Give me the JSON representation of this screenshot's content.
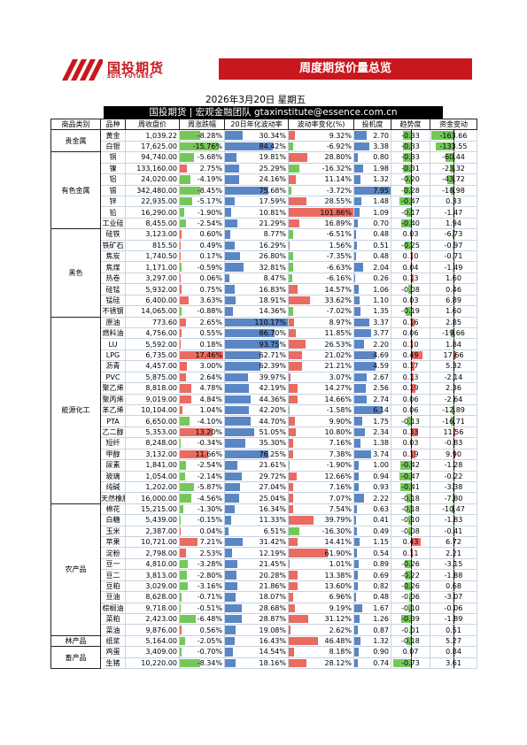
{
  "header": {
    "brand": "国投期货",
    "brand_en": "SDIC FUTURES",
    "banner": "周度期货价量总览",
    "date": "2026年3月20日 星期五",
    "team": "国投期货 | 宏观金融团队 gtaxinstitute@essence.com.cn"
  },
  "columns": [
    "商品类别",
    "品种",
    "周收盘价",
    "周涨跌幅",
    "20日年化波动率",
    "波动率变化(%)",
    "投机度",
    "趋势度",
    "资金变动"
  ],
  "colors": {
    "accent_red": "#c8171f",
    "bar_blue": "#5b86c5",
    "bar_red": "#e96b61",
    "bar_green": "#76c75a"
  },
  "groups": [
    {
      "category": "贵金属",
      "rows": [
        [
          "黄金",
          "1,039.22",
          "-8.28%",
          "30.34%",
          "9.32%",
          "2.70",
          "-0.33",
          "-163.66"
        ],
        [
          "白银",
          "17,625.00",
          "-15.76%",
          "84.42%",
          "-6.92%",
          "3.38",
          "-0.33",
          "-133.55"
        ]
      ]
    },
    {
      "category": "有色金属",
      "rows": [
        [
          "铜",
          "94,740.00",
          "-5.68%",
          "19.81%",
          "28.80%",
          "0.80",
          "-0.33",
          "-60.44"
        ],
        [
          "镍",
          "133,160.00",
          "2.75%",
          "25.29%",
          "-16.32%",
          "1.98",
          "-0.31",
          "-23.32"
        ],
        [
          "铝",
          "24,020.00",
          "-4.19%",
          "24.16%",
          "11.14%",
          "1.32",
          "-0.20",
          "-43.72"
        ],
        [
          "锡",
          "342,480.00",
          "-8.45%",
          "75.68%",
          "-3.72%",
          "7.95",
          "-0.28",
          "-18.98"
        ],
        [
          "锌",
          "22,935.00",
          "-5.17%",
          "17.59%",
          "28.55%",
          "1.48",
          "-0.47",
          "0.33"
        ],
        [
          "铅",
          "16,290.00",
          "-1.90%",
          "10.81%",
          "101.86%",
          "1.09",
          "-0.17",
          "-1.47"
        ],
        [
          "工业硅",
          "8,455.00",
          "-2.54%",
          "21.29%",
          "16.89%",
          "0.70",
          "-0.40",
          "1.94"
        ]
      ]
    },
    {
      "category": "黑色",
      "rows": [
        [
          "硅铁",
          "3,123.00",
          "0.60%",
          "8.77%",
          "-6.51%",
          "0.48",
          "0.03",
          "-6.73"
        ],
        [
          "铁矿石",
          "815.50",
          "0.49%",
          "16.29%",
          "1.56%",
          "0.51",
          "-0.25",
          "-0.97"
        ],
        [
          "焦炭",
          "1,740.50",
          "0.17%",
          "26.80%",
          "-7.35%",
          "0.48",
          "0.10",
          "-0.71"
        ],
        [
          "焦煤",
          "1,171.00",
          "-0.59%",
          "32.81%",
          "-6.63%",
          "2.04",
          "0.04",
          "-1.49"
        ],
        [
          "热卷",
          "3,297.00",
          "0.06%",
          "8.47%",
          "-6.16%",
          "0.26",
          "0.13",
          "1.60"
        ],
        [
          "硅锰",
          "5,932.00",
          "0.75%",
          "16.83%",
          "14.57%",
          "1.06",
          "-0.08",
          "0.46"
        ],
        [
          "锰硅",
          "6,400.00",
          "3.63%",
          "18.91%",
          "33.62%",
          "1.10",
          "0.03",
          "6.89"
        ],
        [
          "不锈钢",
          "14,065.00",
          "-0.88%",
          "14.36%",
          "-7.02%",
          "1.35",
          "-0.19",
          "1.60"
        ]
      ]
    },
    {
      "category": "能源化工",
      "rows": [
        [
          "原油",
          "773.60",
          "2.65%",
          "110.17%",
          "8.97%",
          "3.37",
          "0.16",
          "2.85"
        ],
        [
          "燃料油",
          "4,756.00",
          "0.55%",
          "86.70%",
          "11.85%",
          "3.77",
          "0.06",
          "-19.66"
        ],
        [
          "LU",
          "5,592.00",
          "0.18%",
          "93.75%",
          "26.53%",
          "2.20",
          "0.10",
          "1.84"
        ],
        [
          "LPG",
          "6,735.00",
          "17.46%",
          "62.71%",
          "21.02%",
          "4.69",
          "0.49",
          "17.66"
        ],
        [
          "沥青",
          "4,457.00",
          "3.00%",
          "62.39%",
          "21.21%",
          "4.59",
          "0.17",
          "5.32"
        ],
        [
          "PVC",
          "5,875.00",
          "2.64%",
          "39.97%",
          "3.07%",
          "2.67",
          "0.13",
          "-2.14"
        ],
        [
          "聚乙烯",
          "8,818.00",
          "4.78%",
          "42.19%",
          "14.27%",
          "2.56",
          "0.19",
          "2.36"
        ],
        [
          "聚丙烯",
          "9,019.00",
          "4.84%",
          "44.36%",
          "14.66%",
          "2.74",
          "0.06",
          "-2.64"
        ],
        [
          "苯乙烯",
          "10,104.00",
          "1.04%",
          "42.20%",
          "-1.58%",
          "6.14",
          "0.06",
          "-12.89"
        ],
        [
          "PTA",
          "6,650.00",
          "-4.10%",
          "44.70%",
          "9.90%",
          "1.75",
          "-0.13",
          "-16.71"
        ],
        [
          "乙二醇",
          "5,353.00",
          "13.20%",
          "51.05%",
          "10.80%",
          "2.34",
          "0.33",
          "11.56"
        ],
        [
          "短纤",
          "8,248.00",
          "-0.34%",
          "35.30%",
          "7.16%",
          "1.38",
          "0.03",
          "-0.83"
        ],
        [
          "甲醇",
          "3,132.00",
          "11.66%",
          "76.25%",
          "7.38%",
          "3.74",
          "0.19",
          "9.90"
        ],
        [
          "尿素",
          "1,841.00",
          "-2.54%",
          "21.61%",
          "-1.90%",
          "1.00",
          "-0.42",
          "-1.28"
        ],
        [
          "玻璃",
          "1,054.00",
          "-2.14%",
          "29.72%",
          "12.66%",
          "0.94",
          "-0.47",
          "-0.22"
        ],
        [
          "纯碱",
          "1,202.00",
          "-5.87%",
          "27.04%",
          "7.16%",
          "0.93",
          "-0.41",
          "-3.38"
        ],
        [
          "天然橡胶",
          "16,000.00",
          "-4.56%",
          "25.04%",
          "7.07%",
          "2.22",
          "-0.18",
          "-7.80"
        ]
      ]
    },
    {
      "category": "农产品",
      "rows": [
        [
          "棉花",
          "15,215.00",
          "-1.30%",
          "16.34%",
          "7.54%",
          "0.63",
          "-0.18",
          "-10.47"
        ],
        [
          "白糖",
          "5,439.00",
          "-0.15%",
          "11.33%",
          "39.79%",
          "0.41",
          "-0.10",
          "-1.83"
        ],
        [
          "玉米",
          "2,387.00",
          "0.04%",
          "6.51%",
          "-16.30%",
          "0.49",
          "-0.08",
          "-0.41"
        ],
        [
          "苹果",
          "10,721.00",
          "7.21%",
          "31.42%",
          "14.41%",
          "1.15",
          "0.43",
          "6.72"
        ],
        [
          "淀粉",
          "2,798.00",
          "2.53%",
          "12.19%",
          "61.90%",
          "0.54",
          "0.11",
          "2.21"
        ],
        [
          "豆一",
          "4,810.00",
          "-3.28%",
          "21.45%",
          "1.01%",
          "0.89",
          "-0.26",
          "-3.15"
        ],
        [
          "豆二",
          "3,813.00",
          "-2.80%",
          "20.28%",
          "13.38%",
          "0.69",
          "-0.22",
          "-1.88"
        ],
        [
          "豆粕",
          "3,029.00",
          "-3.16%",
          "21.86%",
          "13.60%",
          "0.82",
          "-0.26",
          "0.68"
        ],
        [
          "豆油",
          "8,628.00",
          "-0.71%",
          "18.07%",
          "6.96%",
          "0.48",
          "-0.06",
          "-3.07"
        ],
        [
          "棕榈油",
          "9,718.00",
          "-0.51%",
          "28.68%",
          "9.19%",
          "1.67",
          "-0.10",
          "-0.06"
        ],
        [
          "菜粕",
          "2,423.00",
          "-6.48%",
          "28.87%",
          "31.12%",
          "1.26",
          "-0.39",
          "-1.89"
        ],
        [
          "菜油",
          "9,876.00",
          "0.56%",
          "19.08%",
          "2.62%",
          "0.87",
          "-0.01",
          "0.51"
        ]
      ]
    },
    {
      "category": "林产品",
      "rows": [
        [
          "纸浆",
          "5,164.00",
          "-2.05%",
          "16.43%",
          "46.48%",
          "1.32",
          "-0.18",
          "5.27"
        ]
      ]
    },
    {
      "category": "畜产品",
      "rows": [
        [
          "鸡蛋",
          "3,409.00",
          "-0.70%",
          "14.54%",
          "8.18%",
          "0.90",
          "0.07",
          "0.84"
        ],
        [
          "生猪",
          "10,220.00",
          "-8.34%",
          "18.16%",
          "28.12%",
          "0.74",
          "-0.73",
          "3.61"
        ]
      ]
    }
  ]
}
